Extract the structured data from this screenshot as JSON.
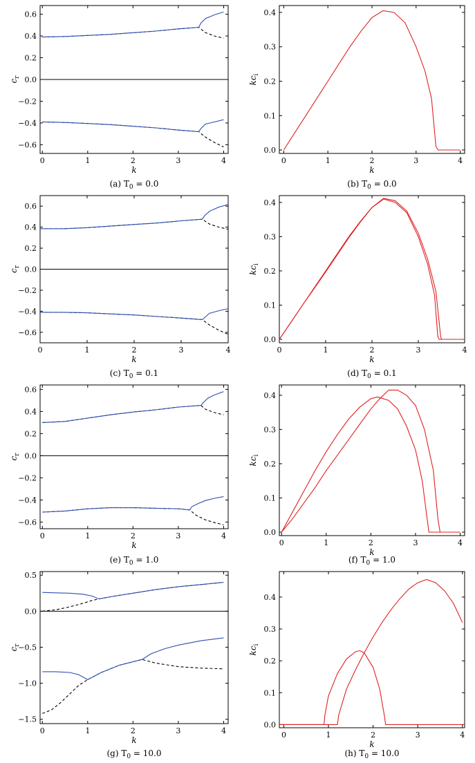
{
  "colors": {
    "solid": "#2c4db0",
    "dashed": "#000000",
    "growth": "#e02020",
    "axis": "#000000"
  },
  "chart_data": [
    {
      "id": "a",
      "type": "line",
      "caption": "(a) T",
      "caption_sub": "0",
      "caption_val": " = 0.0",
      "xlabel": "k",
      "ylabel": "c",
      "ylabel_sub": "r",
      "xlim": [
        -0.05,
        4.1
      ],
      "ylim": [
        -0.68,
        0.68
      ],
      "zero_line": true,
      "grid": false,
      "xticks": [
        0,
        1,
        2,
        3,
        4
      ],
      "xtick_labels": [
        "0",
        "1",
        "2",
        "3",
        "4"
      ],
      "yticks": [
        0.6,
        0.4,
        0.2,
        0.0,
        -0.2,
        -0.4,
        -0.6
      ],
      "ytick_labels": [
        "0.6",
        "0.4",
        "0.2",
        "0.0",
        "−0.2",
        "−0.4",
        "−0.6"
      ],
      "series": [
        {
          "style": "dashed",
          "x": [
            0,
            0.5,
            1,
            1.5,
            2,
            2.5,
            3,
            3.45,
            3.6,
            3.8,
            4
          ],
          "y": [
            0.39,
            0.395,
            0.405,
            0.415,
            0.43,
            0.445,
            0.465,
            0.48,
            0.43,
            0.4,
            0.38
          ]
        },
        {
          "style": "solid",
          "x": [
            0,
            0.5,
            1,
            1.5,
            2,
            2.5,
            3,
            3.45,
            3.5,
            3.6,
            3.8,
            4
          ],
          "y": [
            0.39,
            0.395,
            0.405,
            0.415,
            0.43,
            0.445,
            0.465,
            0.48,
            0.52,
            0.56,
            0.595,
            0.62
          ]
        },
        {
          "style": "dashed",
          "x": [
            0,
            0.5,
            1,
            1.5,
            2,
            2.5,
            3,
            3.45,
            3.6,
            3.8,
            4
          ],
          "y": [
            -0.39,
            -0.395,
            -0.405,
            -0.415,
            -0.43,
            -0.445,
            -0.465,
            -0.48,
            -0.53,
            -0.58,
            -0.62
          ]
        },
        {
          "style": "solid",
          "x": [
            0,
            0.5,
            1,
            1.5,
            2,
            2.5,
            3,
            3.45,
            3.5,
            3.6,
            3.8,
            4
          ],
          "y": [
            -0.39,
            -0.395,
            -0.405,
            -0.415,
            -0.43,
            -0.445,
            -0.465,
            -0.48,
            -0.45,
            -0.41,
            -0.39,
            -0.37
          ]
        }
      ]
    },
    {
      "id": "b",
      "type": "line",
      "caption": "(b) T",
      "caption_sub": "0",
      "caption_val": " = 0.0",
      "xlabel": "k",
      "ylabel": "kc",
      "ylabel_sub": "i",
      "xlim": [
        -0.1,
        4.1
      ],
      "ylim": [
        -0.01,
        0.42
      ],
      "zero_line": false,
      "grid": false,
      "xticks": [
        0,
        1,
        2,
        3,
        4
      ],
      "xtick_labels": [
        "0",
        "1",
        "2",
        "3",
        "4"
      ],
      "yticks": [
        0.0,
        0.1,
        0.2,
        0.3,
        0.4
      ],
      "ytick_labels": [
        "0.0",
        "0.1",
        "0.2",
        "0.3",
        "0.4"
      ],
      "series": [
        {
          "style": "growth",
          "x": [
            0,
            0.25,
            0.5,
            0.75,
            1,
            1.25,
            1.5,
            1.75,
            2,
            2.25,
            2.5,
            2.75,
            3,
            3.2,
            3.35,
            3.45,
            3.5,
            4
          ],
          "y": [
            0,
            0.05,
            0.1,
            0.15,
            0.2,
            0.25,
            0.3,
            0.345,
            0.385,
            0.405,
            0.4,
            0.37,
            0.3,
            0.23,
            0.15,
            0.01,
            0.0,
            0.0
          ]
        }
      ]
    },
    {
      "id": "c",
      "type": "line",
      "caption": "(c) T",
      "caption_sub": "0",
      "caption_val": " = 0.1",
      "xlabel": "k",
      "ylabel": "c",
      "ylabel_sub": "r",
      "xlim": [
        0,
        4
      ],
      "ylim": [
        -0.7,
        0.7
      ],
      "zero_line": true,
      "grid": false,
      "xticks": [
        0,
        1,
        2,
        3,
        4
      ],
      "xtick_labels": [
        "0",
        "1",
        "2",
        "3",
        "4"
      ],
      "yticks": [
        0.6,
        0.4,
        0.2,
        0.0,
        -0.2,
        -0.4,
        -0.6
      ],
      "ytick_labels": [
        "0.6",
        "0.4",
        "0.2",
        "0.0",
        "−0.2",
        "−0.4",
        "−0.6"
      ],
      "series": [
        {
          "style": "dashed",
          "x": [
            0,
            0.5,
            1,
            1.5,
            2,
            2.5,
            3,
            3.45,
            3.6,
            3.8,
            4
          ],
          "y": [
            0.385,
            0.385,
            0.395,
            0.41,
            0.425,
            0.44,
            0.46,
            0.475,
            0.43,
            0.4,
            0.38
          ]
        },
        {
          "style": "solid",
          "x": [
            0,
            0.5,
            1,
            1.5,
            2,
            2.5,
            3,
            3.45,
            3.5,
            3.6,
            3.8,
            4
          ],
          "y": [
            0.385,
            0.385,
            0.395,
            0.41,
            0.425,
            0.44,
            0.46,
            0.475,
            0.51,
            0.55,
            0.59,
            0.615
          ]
        },
        {
          "style": "dashed",
          "x": [
            0,
            0.5,
            1,
            1.5,
            2,
            2.5,
            3,
            3.45,
            3.6,
            3.8,
            4
          ],
          "y": [
            -0.41,
            -0.41,
            -0.415,
            -0.425,
            -0.435,
            -0.45,
            -0.465,
            -0.48,
            -0.53,
            -0.58,
            -0.62
          ]
        },
        {
          "style": "solid",
          "x": [
            0,
            0.5,
            1,
            1.5,
            2,
            2.5,
            3,
            3.45,
            3.5,
            3.6,
            3.8,
            4
          ],
          "y": [
            -0.41,
            -0.41,
            -0.415,
            -0.425,
            -0.435,
            -0.45,
            -0.465,
            -0.48,
            -0.46,
            -0.42,
            -0.395,
            -0.375
          ]
        }
      ]
    },
    {
      "id": "d",
      "type": "line",
      "caption": "(d) T",
      "caption_sub": "0",
      "caption_val": " = 0.1",
      "xlabel": "k",
      "ylabel": "kc",
      "ylabel_sub": "i",
      "xlim": [
        0,
        4
      ],
      "ylim": [
        -0.01,
        0.42
      ],
      "zero_line": false,
      "grid": false,
      "xticks": [
        0,
        1,
        2,
        3,
        4
      ],
      "xtick_labels": [
        "0",
        "1",
        "2",
        "3",
        "4"
      ],
      "yticks": [
        0.0,
        0.1,
        0.2,
        0.3,
        0.4
      ],
      "ytick_labels": [
        "0.0",
        "0.1",
        "0.2",
        "0.3",
        "0.4"
      ],
      "series": [
        {
          "style": "growth",
          "x": [
            0,
            0.25,
            0.5,
            0.75,
            1,
            1.25,
            1.5,
            1.75,
            2,
            2.25,
            2.5,
            2.75,
            3,
            3.2,
            3.35,
            3.42,
            3.45,
            4
          ],
          "y": [
            0,
            0.05,
            0.1,
            0.15,
            0.2,
            0.25,
            0.3,
            0.345,
            0.385,
            0.41,
            0.4,
            0.37,
            0.3,
            0.22,
            0.13,
            0.01,
            0.0,
            0.0
          ]
        },
        {
          "style": "growth",
          "x": [
            0,
            0.25,
            0.5,
            0.75,
            1,
            1.25,
            1.5,
            1.75,
            2,
            2.25,
            2.5,
            2.75,
            3,
            3.2,
            3.38,
            3.48,
            3.5,
            4
          ],
          "y": [
            0,
            0.05,
            0.1,
            0.148,
            0.197,
            0.247,
            0.297,
            0.343,
            0.385,
            0.412,
            0.405,
            0.375,
            0.31,
            0.235,
            0.14,
            0.01,
            0.0,
            0.0
          ]
        }
      ]
    },
    {
      "id": "e",
      "type": "line",
      "caption": "(e) T",
      "caption_sub": "0",
      "caption_val": " = 1.0",
      "xlabel": "k",
      "ylabel": "c",
      "ylabel_sub": "r",
      "xlim": [
        -0.05,
        4.1
      ],
      "ylim": [
        -0.66,
        0.64
      ],
      "zero_line": true,
      "grid": false,
      "xticks": [
        0,
        1,
        2,
        3,
        4
      ],
      "xtick_labels": [
        "0",
        "1",
        "2",
        "3",
        "4"
      ],
      "yticks": [
        0.6,
        0.4,
        0.2,
        0.0,
        -0.2,
        -0.4,
        -0.6
      ],
      "ytick_labels": [
        "0.6",
        "0.4",
        "0.2",
        "0.0",
        "−0.2",
        "−0.4",
        "−0.6"
      ],
      "series": [
        {
          "style": "dashed",
          "x": [
            0,
            0.5,
            1,
            1.5,
            2,
            2.5,
            3,
            3.5,
            3.6,
            3.8,
            4
          ],
          "y": [
            0.3,
            0.31,
            0.34,
            0.37,
            0.395,
            0.415,
            0.44,
            0.455,
            0.42,
            0.39,
            0.37
          ]
        },
        {
          "style": "solid",
          "x": [
            0,
            0.5,
            1,
            1.5,
            2,
            2.5,
            3,
            3.5,
            3.55,
            3.65,
            3.8,
            4
          ],
          "y": [
            0.3,
            0.31,
            0.34,
            0.37,
            0.395,
            0.415,
            0.44,
            0.455,
            0.48,
            0.52,
            0.55,
            0.58
          ]
        },
        {
          "style": "dashed",
          "x": [
            0,
            0.5,
            1,
            1.5,
            2,
            2.5,
            3,
            3.25,
            3.4,
            3.6,
            3.8,
            4
          ],
          "y": [
            -0.51,
            -0.5,
            -0.48,
            -0.47,
            -0.47,
            -0.475,
            -0.48,
            -0.49,
            -0.54,
            -0.58,
            -0.605,
            -0.625
          ]
        },
        {
          "style": "solid",
          "x": [
            0,
            0.5,
            1,
            1.5,
            2,
            2.5,
            3,
            3.25,
            3.3,
            3.45,
            3.6,
            3.8,
            4
          ],
          "y": [
            -0.51,
            -0.5,
            -0.48,
            -0.47,
            -0.47,
            -0.475,
            -0.48,
            -0.49,
            -0.46,
            -0.43,
            -0.405,
            -0.385,
            -0.37
          ]
        }
      ]
    },
    {
      "id": "f",
      "type": "line",
      "caption": "(f) T",
      "caption_sub": "0",
      "caption_val": " = 1.0",
      "xlabel": "k",
      "ylabel": "kc",
      "ylabel_sub": "i",
      "xlim": [
        -0.05,
        4.1
      ],
      "ylim": [
        -0.01,
        0.43
      ],
      "zero_line": false,
      "grid": false,
      "xticks": [
        0,
        1,
        2,
        3,
        4
      ],
      "xtick_labels": [
        "0",
        "1",
        "2",
        "3",
        "4"
      ],
      "yticks": [
        0.0,
        0.1,
        0.2,
        0.3,
        0.4
      ],
      "ytick_labels": [
        "0.0",
        "0.1",
        "0.2",
        "0.3",
        "0.4"
      ],
      "series": [
        {
          "style": "growth",
          "x": [
            0,
            0.25,
            0.5,
            0.75,
            1,
            1.25,
            1.5,
            1.75,
            2,
            2.15,
            2.4,
            2.6,
            2.8,
            3,
            3.15,
            3.25,
            3.3,
            4
          ],
          "y": [
            0,
            0.06,
            0.12,
            0.18,
            0.235,
            0.285,
            0.33,
            0.365,
            0.39,
            0.395,
            0.385,
            0.36,
            0.31,
            0.24,
            0.15,
            0.05,
            0.0,
            0.0
          ]
        },
        {
          "style": "growth",
          "x": [
            0,
            0.25,
            0.5,
            0.75,
            1,
            1.25,
            1.5,
            1.75,
            2,
            2.2,
            2.4,
            2.6,
            2.8,
            3,
            3.2,
            3.4,
            3.5,
            3.55,
            4
          ],
          "y": [
            0,
            0.04,
            0.085,
            0.13,
            0.18,
            0.225,
            0.27,
            0.315,
            0.36,
            0.39,
            0.415,
            0.415,
            0.4,
            0.37,
            0.3,
            0.18,
            0.04,
            0.0,
            0.0
          ]
        }
      ]
    },
    {
      "id": "g",
      "type": "line",
      "caption": "(g) T",
      "caption_sub": "0",
      "caption_val": " = 10.0",
      "xlabel": "k",
      "ylabel": "c",
      "ylabel_sub": "r",
      "xlim": [
        -0.05,
        4.1
      ],
      "ylim": [
        -1.56,
        0.55
      ],
      "zero_line": true,
      "grid": false,
      "xticks": [
        0,
        1,
        2,
        3,
        4
      ],
      "xtick_labels": [
        "0",
        "1",
        "2",
        "3",
        "4"
      ],
      "yticks": [
        0.5,
        0.0,
        -0.5,
        -1.0,
        -1.5
      ],
      "ytick_labels": [
        "0.5",
        "0.0",
        "−0.5",
        "−1.0",
        "−1.5"
      ],
      "series": [
        {
          "style": "dashed",
          "x": [
            0,
            0.3,
            0.6,
            0.9,
            1.1,
            1.25,
            1.5,
            2,
            2.5,
            3,
            3.5,
            4
          ],
          "y": [
            0.0,
            0.02,
            0.06,
            0.11,
            0.15,
            0.17,
            0.2,
            0.25,
            0.3,
            0.34,
            0.37,
            0.4
          ]
        },
        {
          "style": "solid",
          "x": [
            0,
            0.3,
            0.6,
            0.9,
            1.1,
            1.25,
            1.5,
            2,
            2.5,
            3,
            3.5,
            4
          ],
          "y": [
            0.26,
            0.255,
            0.25,
            0.235,
            0.21,
            0.17,
            0.2,
            0.25,
            0.3,
            0.34,
            0.37,
            0.4
          ]
        },
        {
          "style": "dashed",
          "x": [
            0,
            0.2,
            0.4,
            0.6,
            0.8,
            1.0,
            1.3,
            1.7,
            2.2,
            2.5,
            3,
            3.5,
            4
          ],
          "y": [
            -1.42,
            -1.37,
            -1.27,
            -1.15,
            -1.03,
            -0.95,
            -0.85,
            -0.75,
            -0.67,
            -0.72,
            -0.77,
            -0.79,
            -0.8
          ]
        },
        {
          "style": "solid",
          "x": [
            0,
            0.3,
            0.6,
            0.8,
            1.0,
            1.3,
            1.7,
            2.2,
            2.4,
            2.7,
            3,
            3.5,
            4
          ],
          "y": [
            -0.84,
            -0.84,
            -0.85,
            -0.88,
            -0.95,
            -0.85,
            -0.75,
            -0.67,
            -0.59,
            -0.52,
            -0.47,
            -0.41,
            -0.37
          ]
        }
      ]
    },
    {
      "id": "h",
      "type": "line",
      "caption": "(h) T",
      "caption_sub": "0",
      "caption_val": " = 10.0",
      "xlabel": "k",
      "ylabel": "kc",
      "ylabel_sub": "i",
      "xlim": [
        -0.1,
        4.05
      ],
      "ylim": [
        -0.01,
        0.48
      ],
      "zero_line": false,
      "grid": false,
      "xticks": [
        0,
        1,
        2,
        3,
        4
      ],
      "xtick_labels": [
        "0",
        "1",
        "2",
        "3",
        "4"
      ],
      "yticks": [
        0.0,
        0.1,
        0.2,
        0.3,
        0.4
      ],
      "ytick_labels": [
        "0.0",
        "0.1",
        "0.2",
        "0.3",
        "0.4"
      ],
      "series": [
        {
          "style": "growth",
          "x": [
            -0.1,
            0.9,
            0.92,
            1.0,
            1.2,
            1.4,
            1.6,
            1.7,
            1.8,
            2.0,
            2.15,
            2.25,
            2.28,
            4.05
          ],
          "y": [
            0,
            0,
            0.03,
            0.09,
            0.16,
            0.205,
            0.228,
            0.232,
            0.225,
            0.18,
            0.11,
            0.03,
            0.0,
            0.0
          ]
        },
        {
          "style": "growth",
          "x": [
            -0.1,
            1.2,
            1.23,
            1.4,
            1.6,
            1.8,
            2.0,
            2.2,
            2.4,
            2.6,
            2.8,
            3.0,
            3.2,
            3.4,
            3.6,
            3.8,
            4.0
          ],
          "y": [
            0,
            0,
            0.03,
            0.11,
            0.17,
            0.225,
            0.275,
            0.32,
            0.36,
            0.395,
            0.425,
            0.445,
            0.455,
            0.445,
            0.42,
            0.38,
            0.32
          ]
        }
      ]
    }
  ]
}
